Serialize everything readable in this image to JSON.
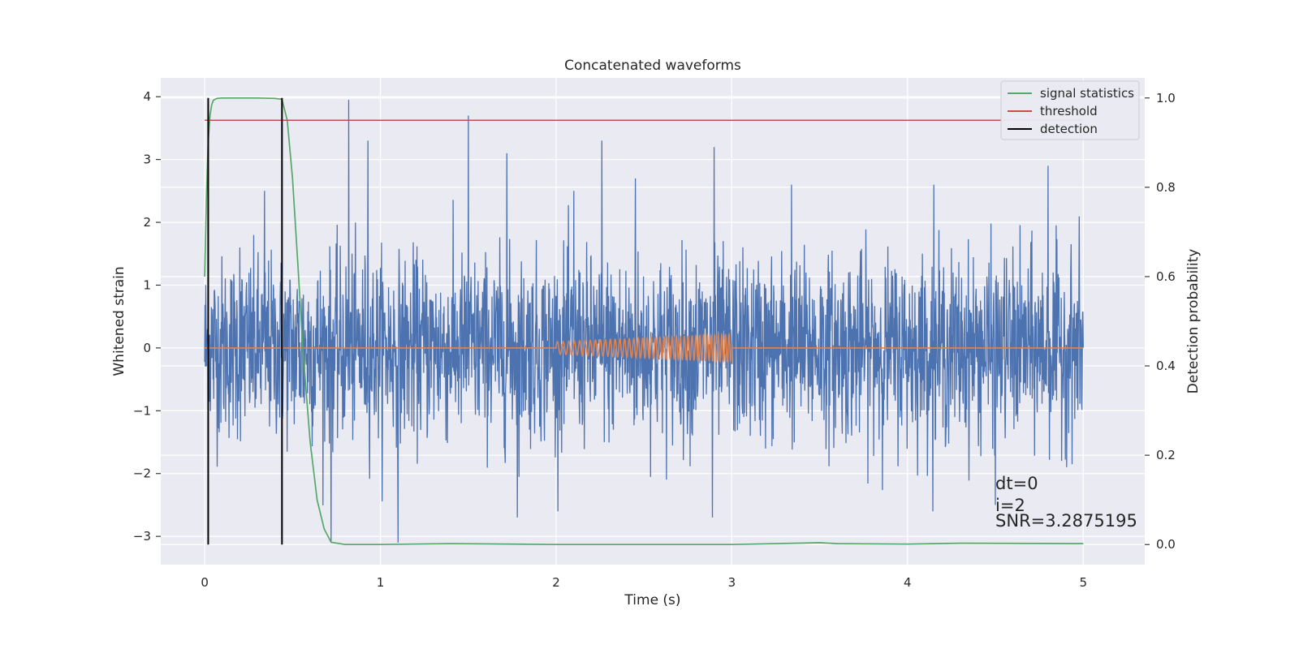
{
  "chart_data": {
    "type": "line",
    "title": "Concatenated waveforms",
    "xlabel": "Time (s)",
    "ylabel": "Whitened strain",
    "ylabel_right": "Detection probability",
    "xlim": [
      -0.25,
      5.35
    ],
    "ylim": [
      -3.45,
      4.3
    ],
    "ylim_right": [
      -0.045,
      1.045
    ],
    "x_ticks": [
      {
        "value": 0,
        "label": "0"
      },
      {
        "value": 1,
        "label": "1"
      },
      {
        "value": 2,
        "label": "2"
      },
      {
        "value": 3,
        "label": "3"
      },
      {
        "value": 4,
        "label": "4"
      },
      {
        "value": 5,
        "label": "5"
      }
    ],
    "y_ticks": [
      {
        "value": 4,
        "label": "4"
      },
      {
        "value": 3,
        "label": "3"
      },
      {
        "value": 2,
        "label": "2"
      },
      {
        "value": 1,
        "label": "1"
      },
      {
        "value": 0,
        "label": "0"
      },
      {
        "value": -1,
        "label": "−1"
      },
      {
        "value": -2,
        "label": "−2"
      },
      {
        "value": -3,
        "label": "−3"
      }
    ],
    "y_right_ticks": [
      {
        "value": 1.0,
        "label": "1.0"
      },
      {
        "value": 0.8,
        "label": "0.8"
      },
      {
        "value": 0.6,
        "label": "0.6"
      },
      {
        "value": 0.4,
        "label": "0.4"
      },
      {
        "value": 0.2,
        "label": "0.2"
      },
      {
        "value": 0.0,
        "label": "0.0"
      }
    ],
    "grid": true,
    "legend_position": "upper right",
    "legend": [
      {
        "label": "signal statistics",
        "color": "#55a868"
      },
      {
        "label": "threshold",
        "color": "#c44e52"
      },
      {
        "label": "detection",
        "color": "#000000"
      }
    ],
    "series": [
      {
        "kind": "whitened-noise",
        "color": "#4c72b0",
        "x_range": [
          0,
          5
        ],
        "typical_band": [
          -1.3,
          1.3
        ],
        "spikes": [
          {
            "x": 0.2,
            "y": 1.6
          },
          {
            "x": 0.34,
            "y": 2.5
          },
          {
            "x": 0.82,
            "y": 3.95
          },
          {
            "x": 0.93,
            "y": 3.3
          },
          {
            "x": 1.1,
            "y": -3.1
          },
          {
            "x": 1.5,
            "y": 3.7
          },
          {
            "x": 1.72,
            "y": 3.1
          },
          {
            "x": 2.1,
            "y": 2.5
          },
          {
            "x": 2.26,
            "y": 3.3
          },
          {
            "x": 2.45,
            "y": 2.7
          },
          {
            "x": 2.9,
            "y": 3.2
          },
          {
            "x": 3.34,
            "y": 2.6
          },
          {
            "x": 4.15,
            "y": 2.6
          },
          {
            "x": 4.8,
            "y": 2.9
          },
          {
            "x": 0.72,
            "y": -3.1
          },
          {
            "x": 1.78,
            "y": -2.7
          },
          {
            "x": 2.89,
            "y": -2.7
          },
          {
            "x": 4.5,
            "y": -2.5
          }
        ]
      },
      {
        "kind": "injected-chirp",
        "color": "#dd8452",
        "x_range": [
          0,
          5
        ],
        "chirp_start": 2.0,
        "chirp_end": 3.0,
        "amplitude_start": 0.1,
        "amplitude_end": 0.22,
        "freq_start_hz": 30,
        "freq_end_hz": 50
      },
      {
        "name": "signal statistics",
        "axis": "right",
        "color": "#55a868",
        "x": [
          0,
          0.01,
          0.02,
          0.03,
          0.04,
          0.05,
          0.07,
          0.1,
          0.2,
          0.3,
          0.4,
          0.44,
          0.47,
          0.5,
          0.53,
          0.56,
          0.6,
          0.64,
          0.68,
          0.72,
          0.8,
          1.0,
          1.4,
          2.0,
          3.0,
          3.5,
          3.6,
          4.0,
          4.3,
          5.0
        ],
        "y": [
          0.6,
          0.78,
          0.9,
          0.96,
          0.985,
          0.995,
          0.999,
          1.0,
          1.0,
          1.0,
          0.999,
          0.997,
          0.95,
          0.82,
          0.63,
          0.43,
          0.23,
          0.1,
          0.035,
          0.005,
          0.0,
          0.0,
          0.002,
          0.0,
          0.0,
          0.004,
          0.002,
          0.001,
          0.003,
          0.002
        ]
      },
      {
        "name": "threshold",
        "axis": "right",
        "color": "#c44e52",
        "x": [
          0,
          5
        ],
        "y": [
          0.95,
          0.95
        ]
      },
      {
        "name": "detection",
        "axis": "right",
        "color": "#000000",
        "vlines": [
          0.02,
          0.44
        ],
        "y": [
          0.0,
          1.0
        ]
      }
    ],
    "annotations": [
      "dt=0",
      "i=2",
      "SNR=3.2875195"
    ]
  }
}
